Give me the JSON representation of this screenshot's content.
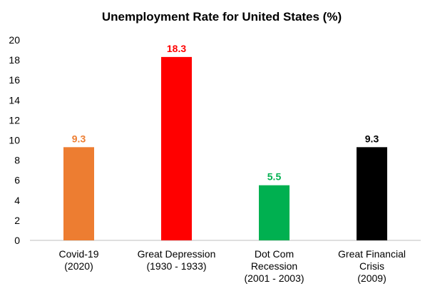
{
  "chart_data": {
    "type": "bar",
    "title": "Unemployment Rate for United States (%)",
    "xlabel": "",
    "ylabel": "",
    "ylim": [
      0,
      20
    ],
    "yticks": [
      0,
      2,
      4,
      6,
      8,
      10,
      12,
      14,
      16,
      18,
      20
    ],
    "grid": false,
    "legend": "none",
    "categories": [
      "Covid-19 (2020)",
      "Great Depression (1930 - 1933)",
      "Dot Com Recession (2001 - 2003)",
      "Great Financial Crisis (2009)"
    ],
    "category_label_lines": [
      [
        "Covid-19",
        "(2020)"
      ],
      [
        "Great Depression",
        "(1930 - 1933)"
      ],
      [
        "Dot Com",
        "Recession",
        "(2001 - 2003)"
      ],
      [
        "Great Financial",
        "Crisis",
        "(2009)"
      ]
    ],
    "values": [
      9.3,
      18.3,
      5.5,
      9.3
    ],
    "data_labels": [
      "9.3",
      "18.3",
      "5.5",
      "9.3"
    ],
    "colors": [
      "#ED7D31",
      "#FF0000",
      "#00B050",
      "#000000"
    ],
    "axis_color": "#BFBFBF"
  }
}
